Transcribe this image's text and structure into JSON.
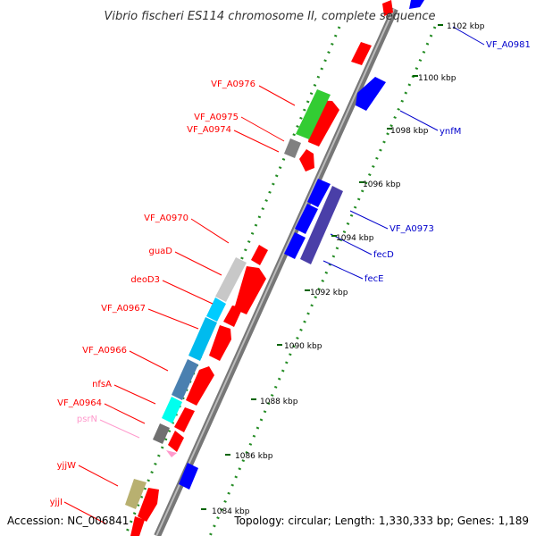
{
  "title": "Vibrio fischeri ES114 chromosome II, complete sequence",
  "footer": {
    "accession": "Accession: NC_006841",
    "summary": "Topology: circular; Length: 1,330,333 bp; Genes: 1,189"
  },
  "ticks": [
    "1102 kbp",
    "1100 kbp",
    "1098 kbp",
    "1096 kbp",
    "1094 kbp",
    "1092 kbp",
    "1090 kbp",
    "1088 kbp",
    "1086 kbp",
    "1084 kbp"
  ],
  "genes_left": [
    {
      "label": "VF_A0976",
      "color": "#ff0000"
    },
    {
      "label": "VF_A0975",
      "color": "#ff0000"
    },
    {
      "label": "VF_A0974",
      "color": "#ff0000"
    },
    {
      "label": "VF_A0970",
      "color": "#ff0000"
    },
    {
      "label": "guaD",
      "color": "#ff0000"
    },
    {
      "label": "deoD3",
      "color": "#ff0000"
    },
    {
      "label": "VF_A0967",
      "color": "#ff0000"
    },
    {
      "label": "VF_A0966",
      "color": "#ff0000"
    },
    {
      "label": "nfsA",
      "color": "#ff0000"
    },
    {
      "label": "VF_A0964",
      "color": "#ff0000"
    },
    {
      "label": "psrN",
      "color": "#ff99cc"
    },
    {
      "label": "yjjW",
      "color": "#ff0000"
    },
    {
      "label": "yjjI",
      "color": "#ff0000"
    }
  ],
  "genes_right": [
    {
      "label": "VF_A0981",
      "color": "#0000cc"
    },
    {
      "label": "ynfM",
      "color": "#0000cc"
    },
    {
      "label": "VF_A0973",
      "color": "#0000cc"
    },
    {
      "label": "fecD",
      "color": "#0000cc"
    },
    {
      "label": "fecE",
      "color": "#0000cc"
    }
  ],
  "colors": {
    "forward_strand": "#ff0000",
    "reverse_strand": "#0000ff",
    "backbone": "#808080",
    "dotted_track": "#228b22"
  }
}
